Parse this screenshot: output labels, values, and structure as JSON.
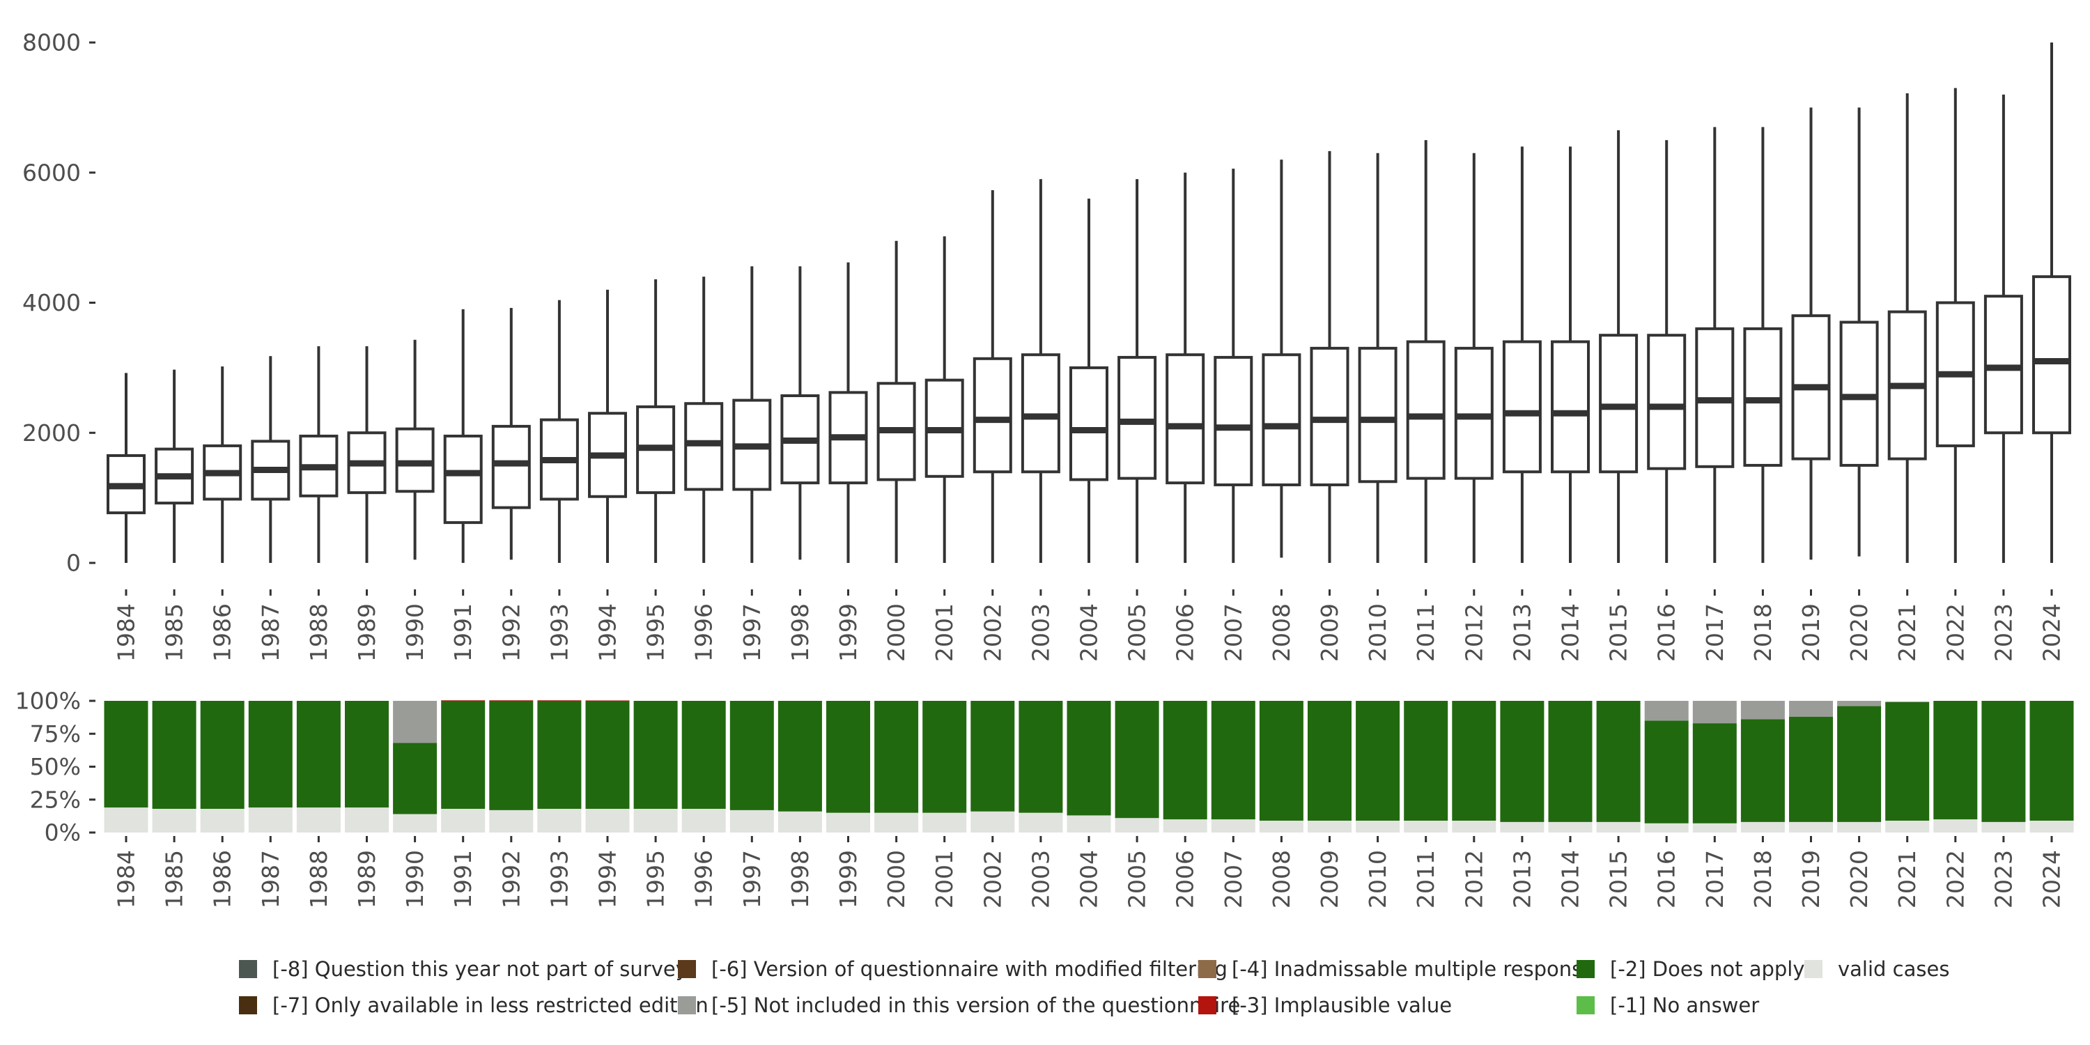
{
  "chart_data": [
    {
      "type": "boxplot",
      "title": "",
      "xlabel": "",
      "ylabel": "",
      "ylim": [
        0,
        8000
      ],
      "y_ticks": [
        {
          "value": 0,
          "label": "0"
        },
        {
          "value": 2000,
          "label": "2000"
        },
        {
          "value": 4000,
          "label": "4000"
        },
        {
          "value": 6000,
          "label": "6000"
        },
        {
          "value": 8000,
          "label": "8000"
        }
      ],
      "categories": [
        "1984",
        "1985",
        "1986",
        "1987",
        "1988",
        "1989",
        "1990",
        "1991",
        "1992",
        "1993",
        "1994",
        "1995",
        "1996",
        "1997",
        "1998",
        "1999",
        "2000",
        "2001",
        "2002",
        "2003",
        "2004",
        "2005",
        "2006",
        "2007",
        "2008",
        "2009",
        "2010",
        "2011",
        "2012",
        "2013",
        "2014",
        "2015",
        "2016",
        "2017",
        "2018",
        "2019",
        "2020",
        "2021",
        "2022",
        "2023",
        "2024"
      ],
      "boxes": [
        {
          "min": 0,
          "q1": 770,
          "median": 1180,
          "q3": 1650,
          "max": 2920
        },
        {
          "min": 0,
          "q1": 920,
          "median": 1330,
          "q3": 1750,
          "max": 2970
        },
        {
          "min": 0,
          "q1": 980,
          "median": 1380,
          "q3": 1800,
          "max": 3020
        },
        {
          "min": 0,
          "q1": 980,
          "median": 1430,
          "q3": 1870,
          "max": 3180
        },
        {
          "min": 0,
          "q1": 1030,
          "median": 1470,
          "q3": 1950,
          "max": 3330
        },
        {
          "min": 0,
          "q1": 1080,
          "median": 1530,
          "q3": 2000,
          "max": 3330
        },
        {
          "min": 50,
          "q1": 1100,
          "median": 1530,
          "q3": 2060,
          "max": 3430
        },
        {
          "min": 0,
          "q1": 620,
          "median": 1380,
          "q3": 1950,
          "max": 3900
        },
        {
          "min": 50,
          "q1": 850,
          "median": 1530,
          "q3": 2100,
          "max": 3920
        },
        {
          "min": 0,
          "q1": 980,
          "median": 1580,
          "q3": 2200,
          "max": 4040
        },
        {
          "min": 0,
          "q1": 1020,
          "median": 1650,
          "q3": 2300,
          "max": 4200
        },
        {
          "min": 0,
          "q1": 1080,
          "median": 1770,
          "q3": 2400,
          "max": 4360
        },
        {
          "min": 0,
          "q1": 1130,
          "median": 1840,
          "q3": 2450,
          "max": 4400
        },
        {
          "min": 0,
          "q1": 1130,
          "median": 1790,
          "q3": 2500,
          "max": 4560
        },
        {
          "min": 50,
          "q1": 1230,
          "median": 1880,
          "q3": 2570,
          "max": 4560
        },
        {
          "min": 0,
          "q1": 1230,
          "median": 1930,
          "q3": 2620,
          "max": 4620
        },
        {
          "min": 0,
          "q1": 1280,
          "median": 2040,
          "q3": 2760,
          "max": 4950
        },
        {
          "min": 0,
          "q1": 1330,
          "median": 2040,
          "q3": 2810,
          "max": 5020
        },
        {
          "min": 0,
          "q1": 1400,
          "median": 2200,
          "q3": 3140,
          "max": 5730
        },
        {
          "min": 0,
          "q1": 1400,
          "median": 2250,
          "q3": 3200,
          "max": 5900
        },
        {
          "min": 0,
          "q1": 1280,
          "median": 2040,
          "q3": 3000,
          "max": 5600
        },
        {
          "min": 0,
          "q1": 1300,
          "median": 2170,
          "q3": 3160,
          "max": 5900
        },
        {
          "min": 0,
          "q1": 1230,
          "median": 2100,
          "q3": 3200,
          "max": 6000
        },
        {
          "min": 0,
          "q1": 1200,
          "median": 2080,
          "q3": 3160,
          "max": 6060
        },
        {
          "min": 80,
          "q1": 1200,
          "median": 2100,
          "q3": 3200,
          "max": 6200
        },
        {
          "min": 0,
          "q1": 1200,
          "median": 2200,
          "q3": 3300,
          "max": 6330
        },
        {
          "min": 0,
          "q1": 1250,
          "median": 2200,
          "q3": 3300,
          "max": 6300
        },
        {
          "min": 0,
          "q1": 1300,
          "median": 2250,
          "q3": 3400,
          "max": 6500
        },
        {
          "min": 0,
          "q1": 1300,
          "median": 2250,
          "q3": 3300,
          "max": 6300
        },
        {
          "min": 0,
          "q1": 1400,
          "median": 2300,
          "q3": 3400,
          "max": 6400
        },
        {
          "min": 0,
          "q1": 1400,
          "median": 2300,
          "q3": 3400,
          "max": 6400
        },
        {
          "min": 0,
          "q1": 1400,
          "median": 2400,
          "q3": 3500,
          "max": 6650
        },
        {
          "min": 0,
          "q1": 1450,
          "median": 2400,
          "q3": 3500,
          "max": 6500
        },
        {
          "min": 0,
          "q1": 1480,
          "median": 2500,
          "q3": 3600,
          "max": 6700
        },
        {
          "min": 0,
          "q1": 1500,
          "median": 2500,
          "q3": 3600,
          "max": 6700
        },
        {
          "min": 50,
          "q1": 1600,
          "median": 2700,
          "q3": 3800,
          "max": 7000
        },
        {
          "min": 100,
          "q1": 1500,
          "median": 2550,
          "q3": 3700,
          "max": 7000
        },
        {
          "min": 0,
          "q1": 1600,
          "median": 2720,
          "q3": 3860,
          "max": 7220
        },
        {
          "min": 0,
          "q1": 1800,
          "median": 2900,
          "q3": 4000,
          "max": 7300
        },
        {
          "min": 0,
          "q1": 2000,
          "median": 3000,
          "q3": 4100,
          "max": 7200
        },
        {
          "min": 0,
          "q1": 2000,
          "median": 3100,
          "q3": 4400,
          "max": 8000
        }
      ]
    },
    {
      "type": "stacked_bar",
      "title": "",
      "xlabel": "",
      "ylabel": "",
      "ylim": [
        0,
        100
      ],
      "y_ticks": [
        {
          "value": 0,
          "label": "0%"
        },
        {
          "value": 25,
          "label": "25%"
        },
        {
          "value": 50,
          "label": "50%"
        },
        {
          "value": 75,
          "label": "75%"
        },
        {
          "value": 100,
          "label": "100%"
        }
      ],
      "categories": [
        "1984",
        "1985",
        "1986",
        "1987",
        "1988",
        "1989",
        "1990",
        "1991",
        "1992",
        "1993",
        "1994",
        "1995",
        "1996",
        "1997",
        "1998",
        "1999",
        "2000",
        "2001",
        "2002",
        "2003",
        "2004",
        "2005",
        "2006",
        "2007",
        "2008",
        "2009",
        "2010",
        "2011",
        "2012",
        "2013",
        "2014",
        "2015",
        "2016",
        "2017",
        "2018",
        "2019",
        "2020",
        "2021",
        "2022",
        "2023",
        "2024"
      ],
      "series": [
        {
          "name": "valid cases",
          "color": "#e1e3de",
          "values": [
            19,
            18,
            18,
            19,
            19,
            19,
            14,
            18,
            17,
            18,
            18,
            18,
            18,
            17,
            16,
            15,
            15,
            15,
            16,
            15,
            13,
            11,
            10,
            10,
            9,
            9,
            9,
            9,
            9,
            8,
            8,
            8,
            7,
            7,
            8,
            8,
            8,
            9,
            10,
            8,
            9
          ]
        },
        {
          "name": "[-2] Does not apply",
          "color": "#21690e",
          "values": [
            81,
            82,
            82,
            81,
            81,
            81,
            54,
            82,
            83,
            82,
            82,
            82,
            82,
            83,
            84,
            85,
            85,
            85,
            84,
            85,
            87,
            89,
            90,
            90,
            91,
            91,
            91,
            91,
            91,
            92,
            92,
            92,
            78,
            76,
            78,
            80,
            88,
            90,
            90,
            92,
            91
          ]
        },
        {
          "name": "[-5] Not included in this version of the questionnaire",
          "color": "#9a9c98",
          "values": [
            0,
            0,
            0,
            0,
            0,
            0,
            32,
            0,
            0,
            0,
            0,
            0,
            0,
            0,
            0,
            0,
            0,
            0,
            0,
            0,
            0,
            0,
            0,
            0,
            0,
            0,
            0,
            0,
            0,
            0,
            0,
            0,
            15,
            17,
            14,
            12,
            4,
            0.5,
            0,
            0,
            0
          ]
        },
        {
          "name": "[-3] Implausible value",
          "color": "#b3140e",
          "values": [
            0,
            0,
            0,
            0,
            0,
            0,
            0,
            0.4,
            0.4,
            0.4,
            0.3,
            0,
            0,
            0,
            0,
            0,
            0,
            0,
            0,
            0,
            0,
            0,
            0,
            0,
            0,
            0,
            0,
            0,
            0,
            0,
            0,
            0,
            0,
            0,
            0,
            0,
            0,
            0,
            0,
            0,
            0
          ]
        }
      ],
      "legend": {
        "placement": "bottom",
        "entries": [
          {
            "label": "[-8] Question this year not part of survey",
            "color": "#4c5752"
          },
          {
            "label": "[-7] Only available in less restricted edition",
            "color": "#4a2e12"
          },
          {
            "label": "[-6] Version of questionnaire with modified filtering",
            "color": "#5b3a1c"
          },
          {
            "label": "[-5] Not included in this version of the questionnaire",
            "color": "#9a9c98"
          },
          {
            "label": "[-4] Inadmissable multiple response",
            "color": "#8e6b48"
          },
          {
            "label": "[-3] Implausible value",
            "color": "#b3140e"
          },
          {
            "label": "[-2] Does not apply",
            "color": "#21690e"
          },
          {
            "label": "[-1] No answer",
            "color": "#5cbd49"
          },
          {
            "label": "valid cases",
            "color": "#e1e3de"
          }
        ]
      }
    }
  ]
}
